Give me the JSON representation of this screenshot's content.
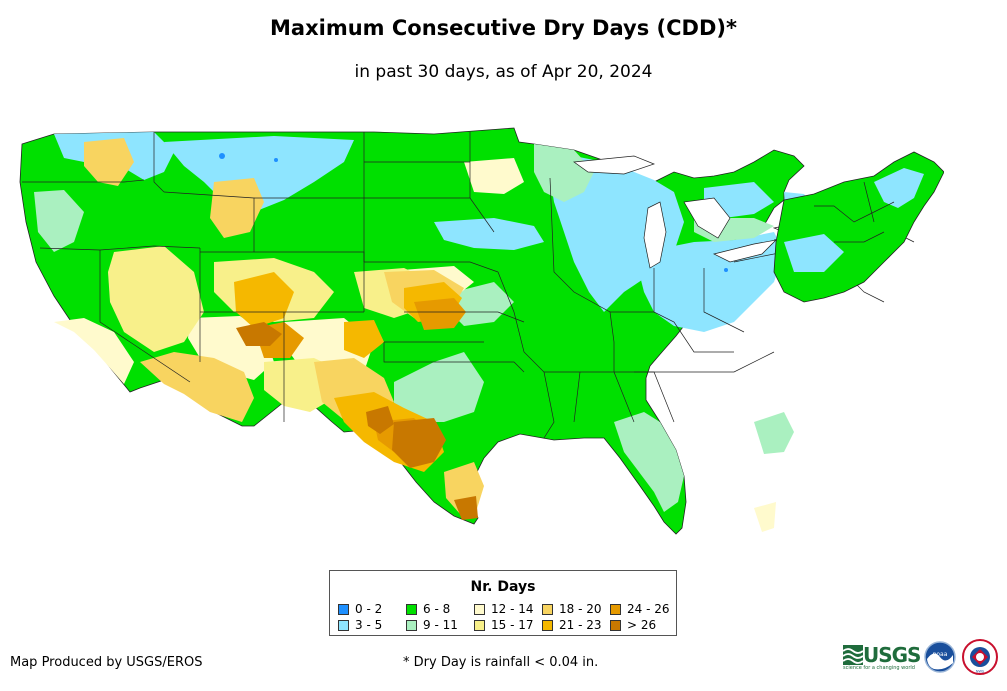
{
  "title": "Maximum Consecutive Dry Days (CDD)*",
  "subtitle": "in past 30 days, as of Apr 20, 2024",
  "legend": {
    "title": "Nr. Days",
    "items": [
      {
        "label": "0 - 2",
        "color": "#1e90ff"
      },
      {
        "label": "6 - 8",
        "color": "#00e000"
      },
      {
        "label": "12 - 14",
        "color": "#fffacd"
      },
      {
        "label": "18 - 20",
        "color": "#f8d460"
      },
      {
        "label": "24 - 26",
        "color": "#e69a00"
      },
      {
        "label": "3 - 5",
        "color": "#8ee5ff"
      },
      {
        "label": "9 - 11",
        "color": "#aaf0c0"
      },
      {
        "label": "15 - 17",
        "color": "#f8f08a"
      },
      {
        "label": "21 - 23",
        "color": "#f5b800"
      },
      {
        "label": "> 26",
        "color": "#c87800"
      }
    ]
  },
  "credit": "Map Produced by USGS/EROS",
  "footnote": "* Dry Day is rainfall < 0.04 in.",
  "logos": {
    "usgs": "USGS",
    "usgs_tagline": "science for a changing world",
    "noaa": "noaa",
    "nws": "NWS"
  },
  "colors": {
    "c0_2": "#1e90ff",
    "c3_5": "#8ee5ff",
    "c6_8": "#00e000",
    "c9_11": "#aaf0c0",
    "c12_14": "#fffacd",
    "c15_17": "#f8f08a",
    "c18_20": "#f8d460",
    "c21_23": "#f5b800",
    "c24_26": "#e69a00",
    "c26plus": "#c87800"
  }
}
